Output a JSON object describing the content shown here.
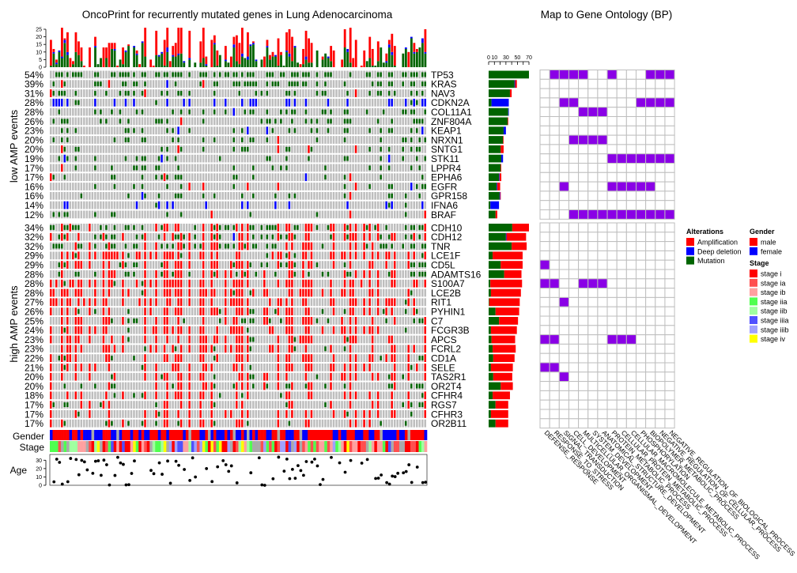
{
  "chart_data": {
    "type": "heatmap",
    "title": "OncoPrint for recurrently mutated genes in Lung Adenocarcinoma",
    "go_title": "Map to Gene Ontology (BP)",
    "group_labels": {
      "low": "low AMP events",
      "high": "high AMP events"
    },
    "track_labels": {
      "gender": "Gender",
      "stage": "Stage",
      "age": "Age"
    },
    "top_axis": {
      "ylim": [
        0,
        25
      ],
      "ticks": [
        "0",
        "5",
        "10",
        "15",
        "20",
        "25"
      ]
    },
    "count_axis": {
      "xlim": [
        0,
        70
      ],
      "ticks": [
        "0",
        "10",
        "30",
        "50",
        "70"
      ]
    },
    "age_axis": {
      "ylim": [
        0,
        35
      ],
      "ticks": [
        "0",
        "10",
        "20",
        "30"
      ]
    },
    "colors": {
      "amplification": "#FF0000",
      "deep_deletion": "#0000FF",
      "mutation": "#006400",
      "none": "#BEBEBE",
      "na": "#AAAAAA",
      "go_hit": "#8A00E6",
      "male": "#FF0000",
      "female": "#0000FF",
      "stage i": "#FF0000",
      "stage ia": "#FF4F4F",
      "stage ib": "#FFA0A0",
      "stage iia": "#50FF50",
      "stage iib": "#A0FFA0",
      "stage iiia": "#5050FF",
      "stage iiib": "#A0A0FF",
      "stage iv": "#FFFF00"
    },
    "go_terms": [
      "DEFENSE_RESPONSE",
      "RESPONSE_TO_STRESS",
      "SIGNAL_TRANSDUCTION",
      "CELL_DEVELOPMENT",
      "MULTICELLULAR_ORGANISMAL_DEVELOPMENT",
      "SYSTEM_DEVELOPMENT",
      "ANATOMICAL_STRUCTURE_DEVELOPMENT",
      "PROTEIN_METABOLIC_PROCESS",
      "CELLULAR_PROTEIN_METABOLIC_PROCESS",
      "CELLULAR_MACROMOLECULE_METABOLIC_PROCESS",
      "PHOSPHORYLATION",
      "BIOPOLYMER_METABOLIC_PROCESS",
      "NEGATIVE_REGULATION_OF_CELLULAR_PROCESS",
      "NEGATIVE_REGULATION_OF_BIOLOGICAL_PROCESS"
    ],
    "genes": [
      {
        "name": "TP53",
        "pct": "54%",
        "group": "low",
        "amp": 0,
        "del": 0,
        "mut": 70,
        "go": [
          1,
          2,
          3,
          4,
          7,
          11,
          12,
          13
        ]
      },
      {
        "name": "KRAS",
        "pct": "39%",
        "group": "low",
        "amp": 3,
        "del": 1,
        "mut": 45,
        "go": []
      },
      {
        "name": "NAV3",
        "pct": "31%",
        "group": "low",
        "amp": 3,
        "del": 0,
        "mut": 37,
        "go": []
      },
      {
        "name": "CDKN2A",
        "pct": "28%",
        "group": "low",
        "amp": 0,
        "del": 30,
        "mut": 5,
        "go": [
          2,
          3,
          10,
          11,
          12,
          13
        ]
      },
      {
        "name": "COL11A1",
        "pct": "28%",
        "group": "low",
        "amp": 0,
        "del": 1,
        "mut": 34,
        "go": [
          4,
          5,
          6
        ]
      },
      {
        "name": "ZNF804A",
        "pct": "26%",
        "group": "low",
        "amp": 1,
        "del": 0,
        "mut": 33,
        "go": []
      },
      {
        "name": "KEAP1",
        "pct": "23%",
        "group": "low",
        "amp": 0,
        "del": 4,
        "mut": 26,
        "go": []
      },
      {
        "name": "NRXN1",
        "pct": "20%",
        "group": "low",
        "amp": 1,
        "del": 0,
        "mut": 25,
        "go": [
          3,
          4,
          5,
          6
        ]
      },
      {
        "name": "SNTG1",
        "pct": "20%",
        "group": "low",
        "amp": 5,
        "del": 0,
        "mut": 21,
        "go": []
      },
      {
        "name": "STK11",
        "pct": "19%",
        "group": "low",
        "amp": 0,
        "del": 3,
        "mut": 22,
        "go": [
          7,
          8,
          9,
          10,
          11,
          12,
          13
        ]
      },
      {
        "name": "LPPR4",
        "pct": "17%",
        "group": "low",
        "amp": 1,
        "del": 0,
        "mut": 21,
        "go": []
      },
      {
        "name": "EPHA6",
        "pct": "17%",
        "group": "low",
        "amp": 3,
        "del": 1,
        "mut": 18,
        "go": []
      },
      {
        "name": "EGFR",
        "pct": "16%",
        "group": "low",
        "amp": 5,
        "del": 1,
        "mut": 14,
        "go": [
          2,
          7,
          8,
          9,
          10,
          11
        ]
      },
      {
        "name": "GPR158",
        "pct": "16%",
        "group": "low",
        "amp": 1,
        "del": 1,
        "mut": 19,
        "go": []
      },
      {
        "name": "IFNA6",
        "pct": "14%",
        "group": "low",
        "amp": 0,
        "del": 15,
        "mut": 3,
        "go": []
      },
      {
        "name": "BRAF",
        "pct": "12%",
        "group": "low",
        "amp": 3,
        "del": 0,
        "mut": 12,
        "go": [
          3,
          4,
          5,
          6,
          7,
          8,
          9,
          10,
          11,
          12,
          13
        ]
      },
      {
        "name": "CDH10",
        "pct": "34%",
        "group": "high",
        "amp": 29,
        "del": 0,
        "mut": 41,
        "go": []
      },
      {
        "name": "CDH12",
        "pct": "32%",
        "group": "high",
        "amp": 34,
        "del": 1,
        "mut": 30,
        "go": []
      },
      {
        "name": "TNR",
        "pct": "32%",
        "group": "high",
        "amp": 26,
        "del": 0,
        "mut": 40,
        "go": []
      },
      {
        "name": "LCE1F",
        "pct": "29%",
        "group": "high",
        "amp": 52,
        "del": 0,
        "mut": 7,
        "go": []
      },
      {
        "name": "CD5L",
        "pct": "29%",
        "group": "high",
        "amp": 38,
        "del": 0,
        "mut": 21,
        "go": [
          0
        ]
      },
      {
        "name": "ADAMTS16",
        "pct": "28%",
        "group": "high",
        "amp": 30,
        "del": 0,
        "mut": 27,
        "go": []
      },
      {
        "name": "S100A7",
        "pct": "28%",
        "group": "high",
        "amp": 55,
        "del": 0,
        "mut": 3,
        "go": [
          0,
          1,
          4,
          5,
          6
        ]
      },
      {
        "name": "LCE2B",
        "pct": "28%",
        "group": "high",
        "amp": 52,
        "del": 0,
        "mut": 4,
        "go": []
      },
      {
        "name": "RIT1",
        "pct": "27%",
        "group": "high",
        "amp": 53,
        "del": 0,
        "mut": 1,
        "go": [
          2
        ]
      },
      {
        "name": "PYHIN1",
        "pct": "26%",
        "group": "high",
        "amp": 41,
        "del": 0,
        "mut": 12,
        "go": []
      },
      {
        "name": "C7",
        "pct": "25%",
        "group": "high",
        "amp": 33,
        "del": 0,
        "mut": 18,
        "go": []
      },
      {
        "name": "FCGR3B",
        "pct": "24%",
        "group": "high",
        "amp": 45,
        "del": 0,
        "mut": 4,
        "go": []
      },
      {
        "name": "APCS",
        "pct": "23%",
        "group": "high",
        "amp": 41,
        "del": 0,
        "mut": 5,
        "go": [
          0,
          1,
          7,
          8,
          9
        ]
      },
      {
        "name": "FCRL2",
        "pct": "23%",
        "group": "high",
        "amp": 40,
        "del": 0,
        "mut": 7,
        "go": []
      },
      {
        "name": "CD1A",
        "pct": "22%",
        "group": "high",
        "amp": 37,
        "del": 0,
        "mut": 8,
        "go": []
      },
      {
        "name": "SELE",
        "pct": "21%",
        "group": "high",
        "amp": 38,
        "del": 0,
        "mut": 4,
        "go": [
          0,
          1
        ]
      },
      {
        "name": "TAS2R1",
        "pct": "20%",
        "group": "high",
        "amp": 33,
        "del": 0,
        "mut": 8,
        "go": [
          2
        ]
      },
      {
        "name": "OR2T4",
        "pct": "20%",
        "group": "high",
        "amp": 21,
        "del": 0,
        "mut": 21,
        "go": []
      },
      {
        "name": "CFHR4",
        "pct": "18%",
        "group": "high",
        "amp": 30,
        "del": 0,
        "mut": 7,
        "go": []
      },
      {
        "name": "RGS7",
        "pct": "17%",
        "group": "high",
        "amp": 22,
        "del": 0,
        "mut": 12,
        "go": []
      },
      {
        "name": "CFHR3",
        "pct": "17%",
        "group": "high",
        "amp": 30,
        "del": 0,
        "mut": 4,
        "go": []
      },
      {
        "name": "OR2B11",
        "pct": "17%",
        "group": "high",
        "amp": 22,
        "del": 0,
        "mut": 12,
        "go": []
      }
    ],
    "legend": {
      "alterations": {
        "title": "Alterations",
        "items": [
          {
            "label": "Amplification",
            "key": "amplification"
          },
          {
            "label": "Deep deletion",
            "key": "deep_deletion"
          },
          {
            "label": "Mutation",
            "key": "mutation"
          }
        ]
      },
      "gender": {
        "title": "Gender",
        "items": [
          {
            "label": "male",
            "key": "male"
          },
          {
            "label": "female",
            "key": "female"
          }
        ]
      },
      "stage": {
        "title": "Stage",
        "items": [
          {
            "label": "stage i",
            "key": "stage i"
          },
          {
            "label": "stage ia",
            "key": "stage ia"
          },
          {
            "label": "stage ib",
            "key": "stage ib"
          },
          {
            "label": "stage iia",
            "key": "stage iia"
          },
          {
            "label": "stage iib",
            "key": "stage iib"
          },
          {
            "label": "stage iiia",
            "key": "stage iiia"
          },
          {
            "label": "stage iiib",
            "key": "stage iiib"
          },
          {
            "label": "stage iv",
            "key": "stage iv"
          }
        ]
      }
    }
  }
}
